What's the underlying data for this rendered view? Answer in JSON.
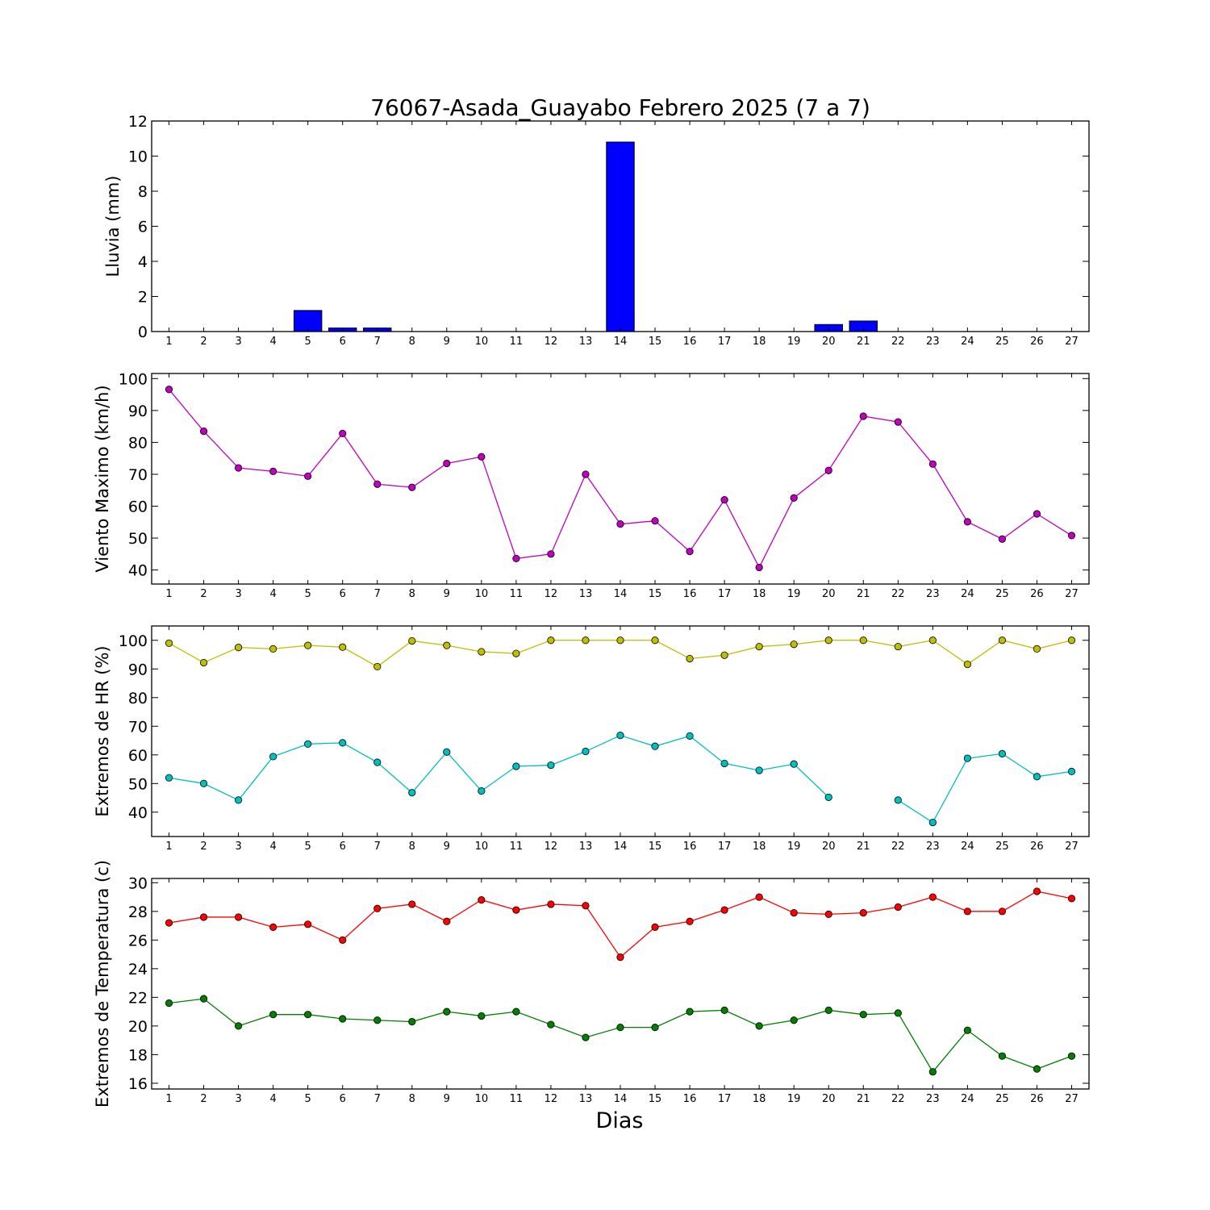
{
  "chart_data": [
    {
      "type": "bar",
      "title": "76067-Asada_Guayabo Febrero 2025  (7 a 7)",
      "ylabel": "Lluvia (mm)",
      "xlabel": "",
      "x": [
        1,
        2,
        3,
        4,
        5,
        6,
        7,
        8,
        9,
        10,
        11,
        12,
        13,
        14,
        15,
        16,
        17,
        18,
        19,
        20,
        21,
        22,
        23,
        24,
        25,
        26,
        27
      ],
      "ylim": [
        0,
        12
      ],
      "yticks": [
        0,
        2,
        4,
        6,
        8,
        10,
        12
      ],
      "grid": false,
      "series": [
        {
          "color": "#0000ff",
          "values": [
            0,
            0,
            0,
            0,
            1.2,
            0.2,
            0.2,
            0,
            0,
            0,
            0,
            0,
            0,
            10.8,
            0,
            0,
            0,
            0,
            0,
            0.4,
            0.6,
            0,
            0,
            0,
            0,
            0,
            0
          ]
        }
      ]
    },
    {
      "type": "line",
      "ylabel": "Viento Maximo (km/h)",
      "xlabel": "",
      "x": [
        1,
        2,
        3,
        4,
        5,
        6,
        7,
        8,
        9,
        10,
        11,
        12,
        13,
        14,
        15,
        16,
        17,
        18,
        19,
        20,
        21,
        22,
        23,
        24,
        25,
        26,
        27
      ],
      "ylim": [
        35.6,
        101.6
      ],
      "yticks": [
        40,
        50,
        60,
        70,
        80,
        90,
        100
      ],
      "grid": false,
      "series": [
        {
          "color": "#bf00bf",
          "values": [
            96.6,
            83.5,
            72.0,
            70.9,
            69.4,
            82.8,
            66.9,
            65.9,
            73.4,
            75.5,
            43.6,
            45.0,
            70.0,
            54.4,
            55.4,
            45.8,
            62.0,
            40.8,
            62.6,
            71.2,
            88.2,
            86.4,
            73.2,
            55.1,
            49.7,
            57.6,
            50.8
          ]
        }
      ]
    },
    {
      "type": "line",
      "ylabel": "Extremos de HR (%)",
      "xlabel": "",
      "x": [
        1,
        2,
        3,
        4,
        5,
        6,
        7,
        8,
        9,
        10,
        11,
        12,
        13,
        14,
        15,
        16,
        17,
        18,
        19,
        20,
        21,
        22,
        23,
        24,
        25,
        26,
        27
      ],
      "ylim": [
        31.5,
        105
      ],
      "yticks": [
        40,
        50,
        60,
        70,
        80,
        90,
        100
      ],
      "grid": false,
      "series": [
        {
          "color": "#bfbf00",
          "values": [
            99,
            92.2,
            97.5,
            97,
            98.2,
            97.6,
            90.8,
            99.8,
            98.2,
            96,
            95.4,
            100,
            100,
            100,
            100,
            93.6,
            94.8,
            97.8,
            98.6,
            100,
            100,
            97.8,
            100,
            91.6,
            100,
            97,
            100
          ]
        },
        {
          "color": "#00bfbf",
          "values": [
            52,
            50,
            44.2,
            59.4,
            63.8,
            64.2,
            57.4,
            46.8,
            61,
            47.4,
            56,
            56.4,
            61.2,
            66.8,
            63,
            66.6,
            57,
            54.6,
            56.8,
            45.2,
            null,
            44.2,
            36.4,
            58.8,
            60.4,
            52.4,
            54.2
          ]
        }
      ]
    },
    {
      "type": "line",
      "ylabel": "Extremos de Temperatura (c)",
      "xlabel": "Dias",
      "x": [
        1,
        2,
        3,
        4,
        5,
        6,
        7,
        8,
        9,
        10,
        11,
        12,
        13,
        14,
        15,
        16,
        17,
        18,
        19,
        20,
        21,
        22,
        23,
        24,
        25,
        26,
        27
      ],
      "ylim": [
        15.6,
        30.3
      ],
      "yticks": [
        16,
        18,
        20,
        22,
        24,
        26,
        28,
        30
      ],
      "grid": false,
      "series": [
        {
          "color": "#ff0000",
          "values": [
            27.2,
            27.6,
            27.6,
            26.9,
            27.1,
            26,
            28.2,
            28.5,
            27.3,
            28.8,
            28.1,
            28.5,
            28.4,
            24.8,
            26.9,
            27.3,
            28.1,
            29,
            27.9,
            27.8,
            27.9,
            28.3,
            29,
            28,
            28,
            29.4,
            28.9
          ]
        },
        {
          "color": "#007f00",
          "values": [
            21.6,
            21.9,
            20,
            20.8,
            20.8,
            20.5,
            20.4,
            20.3,
            21,
            20.7,
            21,
            20.1,
            19.2,
            19.9,
            19.9,
            21,
            21.1,
            20,
            20.4,
            21.1,
            20.8,
            20.9,
            16.8,
            19.7,
            17.9,
            17,
            17.9
          ]
        }
      ]
    }
  ]
}
